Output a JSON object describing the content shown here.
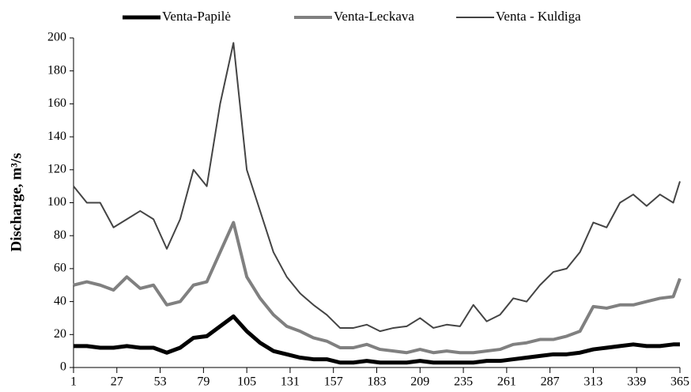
{
  "chart_data": {
    "type": "line",
    "y_label": "Discharge, m³/s",
    "x": [
      1,
      9,
      17,
      25,
      33,
      41,
      49,
      57,
      65,
      73,
      81,
      89,
      97,
      105,
      113,
      121,
      129,
      137,
      145,
      153,
      161,
      169,
      177,
      185,
      193,
      201,
      209,
      217,
      225,
      233,
      241,
      249,
      257,
      265,
      273,
      281,
      289,
      297,
      305,
      313,
      321,
      329,
      337,
      345,
      353,
      361,
      365
    ],
    "series": [
      {
        "name": "Venta-Papilė",
        "color": "#000000",
        "width": 5,
        "values": [
          13,
          13,
          12,
          12,
          13,
          12,
          12,
          9,
          12,
          18,
          19,
          25,
          31,
          22,
          15,
          10,
          8,
          6,
          5,
          5,
          3,
          3,
          4,
          3,
          3,
          3,
          4,
          3,
          3,
          3,
          3,
          4,
          4,
          5,
          6,
          7,
          8,
          8,
          9,
          11,
          12,
          13,
          14,
          13,
          13,
          14,
          14
        ]
      },
      {
        "name": "Venta-Leckava",
        "color": "#808080",
        "width": 4,
        "values": [
          50,
          52,
          50,
          47,
          55,
          48,
          50,
          38,
          40,
          50,
          52,
          70,
          88,
          55,
          42,
          32,
          25,
          22,
          18,
          16,
          12,
          12,
          14,
          11,
          10,
          9,
          11,
          9,
          10,
          9,
          9,
          10,
          11,
          14,
          15,
          17,
          17,
          19,
          22,
          37,
          36,
          38,
          38,
          40,
          42,
          43,
          54
        ]
      },
      {
        "name": "Venta - Kuldiga",
        "color": "#444444",
        "width": 2,
        "values": [
          110,
          100,
          100,
          85,
          90,
          95,
          90,
          72,
          90,
          120,
          110,
          160,
          197,
          120,
          95,
          70,
          55,
          45,
          38,
          32,
          24,
          24,
          26,
          22,
          24,
          25,
          30,
          24,
          26,
          25,
          38,
          28,
          32,
          42,
          40,
          50,
          58,
          60,
          70,
          88,
          85,
          100,
          105,
          98,
          105,
          100,
          113
        ]
      }
    ],
    "xlim": [
      1,
      365
    ],
    "xticks": [
      1,
      27,
      53,
      79,
      105,
      131,
      157,
      183,
      209,
      235,
      261,
      287,
      313,
      339,
      365
    ],
    "ylim": [
      0,
      200
    ],
    "yticks": [
      0,
      20,
      40,
      60,
      80,
      100,
      120,
      140,
      160,
      180,
      200
    ],
    "legend": "top"
  }
}
